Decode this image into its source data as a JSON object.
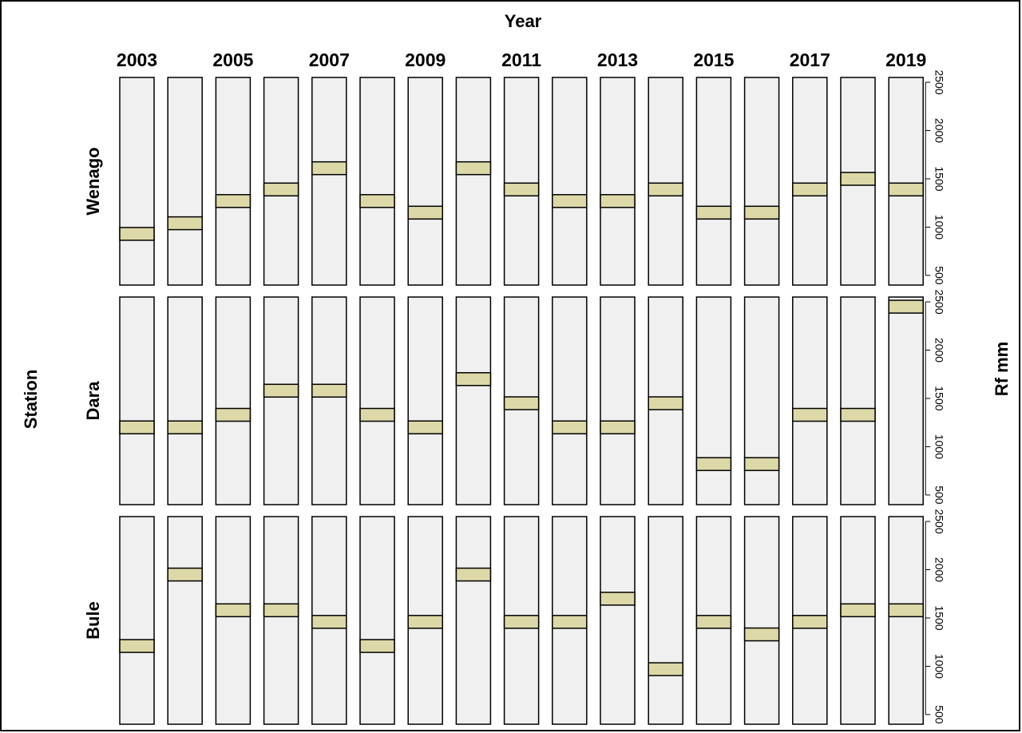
{
  "chart_data": {
    "type": "tile",
    "x_label": "Year",
    "y_label": "Rf mm",
    "facet_label": "Station",
    "categories": [
      "2003",
      null,
      "2005",
      null,
      "2007",
      null,
      "2009",
      null,
      "2011",
      null,
      "2013",
      null,
      "2015",
      null,
      "2017",
      null,
      "2019"
    ],
    "ylim": [
      400,
      2550
    ],
    "yticks": [
      500,
      1000,
      1500,
      2000,
      2500
    ],
    "panel_color": "#f0f0f0",
    "series": [
      {
        "name": "Wenago",
        "color": "#ddd8a8",
        "values": [
          930,
          1040,
          1270,
          1390,
          1610,
          1270,
          1150,
          1610,
          1390,
          1270,
          1270,
          1390,
          1150,
          1150,
          1390,
          1500,
          1390
        ]
      },
      {
        "name": "Dara",
        "color": "#ddd8a8",
        "values": [
          1200,
          1200,
          1330,
          1580,
          1580,
          1330,
          1200,
          1700,
          1450,
          1200,
          1200,
          1450,
          820,
          820,
          1330,
          1330,
          2450
        ]
      },
      {
        "name": "Bule",
        "color": "#ddd8a8",
        "values": [
          1210,
          1950,
          1580,
          1580,
          1460,
          1210,
          1460,
          1950,
          1460,
          1460,
          1700,
          970,
          1460,
          1330,
          1460,
          1580,
          1580
        ]
      }
    ]
  }
}
